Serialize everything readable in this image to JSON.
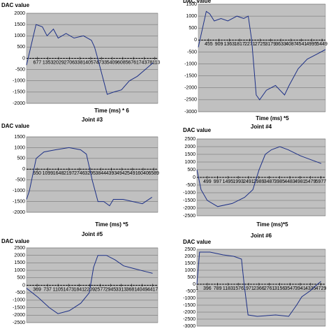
{
  "chart_data": [
    {
      "type": "line",
      "y_label": "DAC value",
      "x_label": "Time (ms) * 6",
      "grid": true,
      "xlim": [
        0,
        8300
      ],
      "ylim": [
        -2000,
        2000
      ],
      "xticks": [
        677,
        1353,
        2029,
        2706,
        3381,
        4057,
        4733,
        5409,
        6085,
        6761,
        7437,
        8113
      ],
      "yticks": [
        -2000,
        -1500,
        -1000,
        -500,
        0,
        500,
        1000,
        1500,
        2000
      ],
      "series": [
        {
          "color": "#1c2f86",
          "x": [
            0,
            300,
            600,
            1000,
            1300,
            1700,
            2000,
            2500,
            3000,
            3600,
            4100,
            4300,
            4500,
            5100,
            5500,
            6000,
            6500,
            7000,
            7500,
            8000
          ],
          "values": [
            -300,
            600,
            1500,
            1400,
            1000,
            1300,
            900,
            1100,
            900,
            1000,
            800,
            500,
            0,
            -1600,
            -1500,
            -1400,
            -1000,
            -800,
            -500,
            -200
          ]
        }
      ]
    },
    {
      "type": "line",
      "y_label": "DAC value",
      "x_label": "Time (ms) *5",
      "grid": true,
      "xlim": [
        0,
        5600
      ],
      "ylim": [
        -3000,
        1500
      ],
      "xticks": [
        455,
        909,
        1363,
        1817,
        2271,
        2725,
        3179,
        3633,
        4087,
        4541,
        4995,
        5449
      ],
      "yticks": [
        -3000,
        -2500,
        -2000,
        -1500,
        -1000,
        -500,
        0,
        500,
        1000,
        1500
      ],
      "series": [
        {
          "color": "#1c2f86",
          "x": [
            0,
            350,
            500,
            700,
            1000,
            1300,
            1700,
            2000,
            2200,
            2350,
            2550,
            2700,
            3000,
            3400,
            3800,
            4000,
            4400,
            4800,
            5200,
            5600
          ],
          "values": [
            -300,
            1200,
            1100,
            800,
            900,
            800,
            1000,
            900,
            1000,
            0,
            -2300,
            -2500,
            -2100,
            -1900,
            -2300,
            -1900,
            -1200,
            -800,
            -600,
            -400
          ]
        }
      ]
    },
    {
      "type": "line",
      "title": "Joint #3",
      "y_label": "DAC value",
      "x_label": "Time (ms) *5",
      "grid": true,
      "xlim": [
        0,
        6800
      ],
      "ylim": [
        -2000,
        1500
      ],
      "xticks": [
        550,
        1099,
        1648,
        2197,
        2746,
        3295,
        3844,
        4393,
        4942,
        5491,
        6040,
        6589
      ],
      "yticks": [
        -2000,
        -1500,
        -1000,
        -500,
        0,
        500,
        1000,
        1500
      ],
      "series": [
        {
          "color": "#1c2f86",
          "x": [
            0,
            150,
            500,
            900,
            1500,
            2200,
            2800,
            3100,
            3400,
            3700,
            4000,
            4300,
            4500,
            5000,
            5500,
            6000,
            6500
          ],
          "values": [
            -1400,
            -1000,
            500,
            800,
            900,
            1000,
            900,
            700,
            -500,
            -1500,
            -1500,
            -1700,
            -1400,
            -1400,
            -1500,
            -1600,
            -1300
          ]
        }
      ]
    },
    {
      "type": "line",
      "title": "Joint #4",
      "y_label": "DAC value",
      "x_label": "Time (ms)*5",
      "grid": true,
      "xlim": [
        0,
        6200
      ],
      "ylim": [
        -2500,
        2500
      ],
      "xticks": [
        499,
        997,
        1495,
        1993,
        2491,
        2989,
        3487,
        3985,
        4483,
        4981,
        5479,
        5977
      ],
      "yticks": [
        -2500,
        -2000,
        -1500,
        -1000,
        -500,
        0,
        500,
        1000,
        1500,
        2000,
        2500
      ],
      "series": [
        {
          "color": "#1c2f86",
          "x": [
            0,
            200,
            500,
            1000,
            1700,
            2300,
            2700,
            3000,
            3300,
            3600,
            4000,
            4400,
            5000,
            5600,
            6000
          ],
          "values": [
            500,
            -800,
            -1500,
            -1900,
            -1700,
            -1300,
            -800,
            500,
            1500,
            1800,
            2000,
            1800,
            1400,
            1100,
            900
          ]
        }
      ]
    },
    {
      "type": "line",
      "title": "Joint #5",
      "y_label": "DAC value",
      "grid": true,
      "xlim": [
        0,
        4600
      ],
      "ylim": [
        -2500,
        2500
      ],
      "xticks": [
        369,
        737,
        1105,
        1473,
        1841,
        2209,
        2577,
        2945,
        3313,
        3681,
        4049,
        4417
      ],
      "yticks": [
        -2500,
        -2000,
        -1500,
        -1000,
        -500,
        0,
        500,
        1000,
        1500,
        2000,
        2500
      ],
      "series": [
        {
          "color": "#1c2f86",
          "x": [
            0,
            400,
            800,
            1100,
            1500,
            1900,
            2200,
            2350,
            2500,
            2800,
            3100,
            3400,
            3800,
            4200,
            4417
          ],
          "values": [
            -200,
            -800,
            -1500,
            -1900,
            -1700,
            -1200,
            -500,
            1200,
            2000,
            2000,
            1700,
            1300,
            1100,
            900,
            800
          ]
        }
      ]
    },
    {
      "type": "line",
      "title": "Joint #6",
      "y_label": "DAC value",
      "grid": true,
      "xlim": [
        0,
        4900
      ],
      "ylim": [
        -3000,
        2500
      ],
      "xticks": [
        1,
        396,
        789,
        1183,
        1576,
        1971,
        2366,
        2761,
        3156,
        3547,
        3941,
        4335,
        4729
      ],
      "yticks": [
        -3000,
        -2500,
        -2000,
        -1500,
        -1000,
        -500,
        0,
        500,
        1000,
        1500,
        2000,
        2500
      ],
      "series": [
        {
          "color": "#1c2f86",
          "x": [
            0,
            100,
            500,
            1000,
            1400,
            1700,
            1800,
            1950,
            2300,
            3000,
            3500,
            3800,
            4000,
            4300,
            4600,
            4729
          ],
          "values": [
            0,
            2300,
            2300,
            2100,
            2000,
            1800,
            0,
            -2200,
            -2300,
            -2200,
            -2300,
            -1500,
            -900,
            -500,
            0,
            200
          ]
        }
      ]
    }
  ]
}
